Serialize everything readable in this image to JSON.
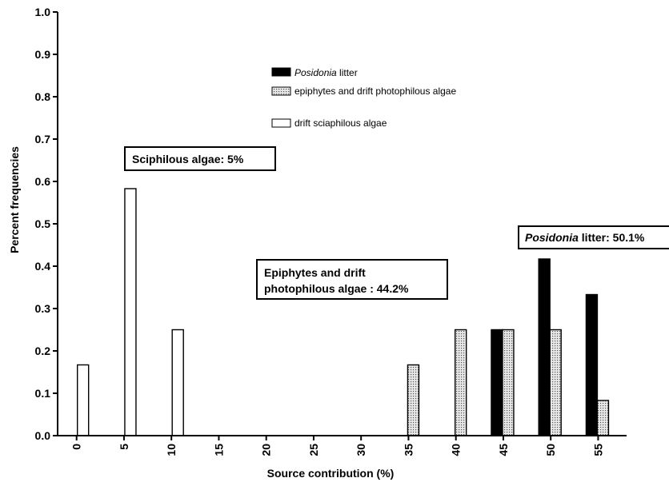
{
  "chart_data": {
    "type": "bar",
    "xlabel": "Source contribution (%)",
    "ylabel": "Percent frequencies",
    "x_ticks": [
      "0",
      "5",
      "10",
      "15",
      "20",
      "25",
      "30",
      "35",
      "40",
      "45",
      "50",
      "55"
    ],
    "y_ticks": [
      "0.0",
      "0.1",
      "0.2",
      "0.3",
      "0.4",
      "0.5",
      "0.6",
      "0.7",
      "0.8",
      "0.9",
      "1.0"
    ],
    "xlim": [
      -2,
      58
    ],
    "ylim": [
      0,
      1
    ],
    "grid": false,
    "legend_position": "top-center",
    "series": [
      {
        "key": "posidonia",
        "name_italic": "Posidonia",
        "name_rest": " litter",
        "fill": "#000000",
        "style": "solid",
        "points": [
          {
            "x": 45,
            "y": 0.25
          },
          {
            "x": 50,
            "y": 0.417
          },
          {
            "x": 55,
            "y": 0.333
          }
        ]
      },
      {
        "key": "epiphytes",
        "name": "epiphytes and drift photophilous algae",
        "fill": "#d8d8d8",
        "style": "dotted",
        "points": [
          {
            "x": 35,
            "y": 0.167
          },
          {
            "x": 40,
            "y": 0.25
          },
          {
            "x": 45,
            "y": 0.25
          },
          {
            "x": 50,
            "y": 0.25
          },
          {
            "x": 55,
            "y": 0.083
          }
        ]
      },
      {
        "key": "sciaphilous",
        "name": "drift sciaphilous algae",
        "fill": "#ffffff",
        "style": "open",
        "points": [
          {
            "x": 0,
            "y": 0.167
          },
          {
            "x": 5,
            "y": 0.583
          },
          {
            "x": 10,
            "y": 0.25
          }
        ]
      }
    ],
    "annotations": [
      {
        "key": "sciaphilous_note",
        "lines": [
          "Sciphilous algae: 5%"
        ]
      },
      {
        "key": "epiphytes_note",
        "lines": [
          "Epiphytes and drift",
          "photophilous algae : 44.2%"
        ]
      },
      {
        "key": "posidonia_note",
        "italic": "Posidonia",
        "rest": " litter: 50.1%"
      }
    ]
  }
}
